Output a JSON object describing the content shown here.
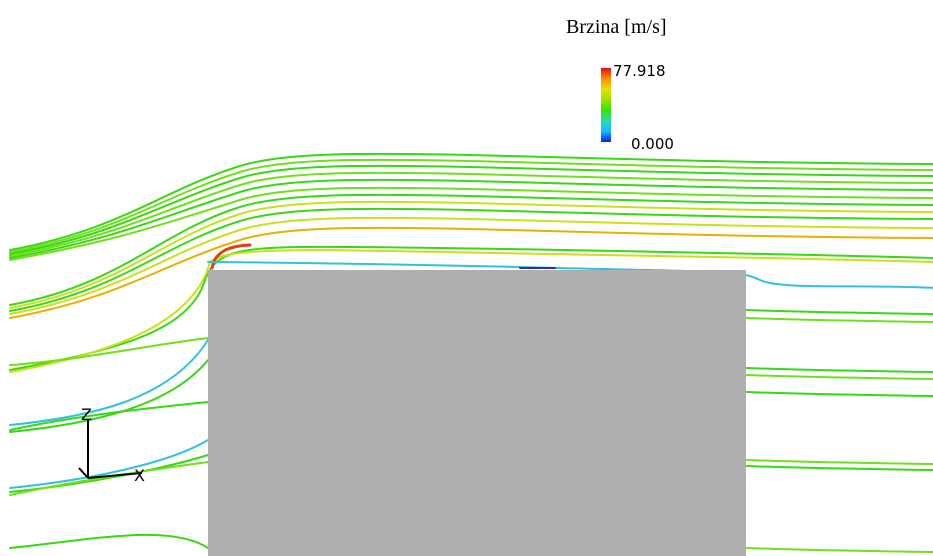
{
  "legend": {
    "title": "Brzina [m/s]",
    "max_label": "77.918",
    "min_label": "0.000",
    "gradient_colors": [
      "#0a1cff",
      "#1bb7ff",
      "#22e0b0",
      "#33e600",
      "#9be000",
      "#e8e000",
      "#ff8c00",
      "#e01010"
    ]
  },
  "axes": {
    "vertical_label": "Z",
    "horizontal_label": "X"
  },
  "colors": {
    "obstacle": "#afafaf",
    "streamline_main": "#39d814",
    "streamline_light": "#6fe01a",
    "streamline_accel": "#c8e21a",
    "streamline_fast": "#e8b000",
    "streamline_peak": "#e04010",
    "streamline_slow": "#33c0e0",
    "streamline_wake": "#2aa0d8"
  }
}
